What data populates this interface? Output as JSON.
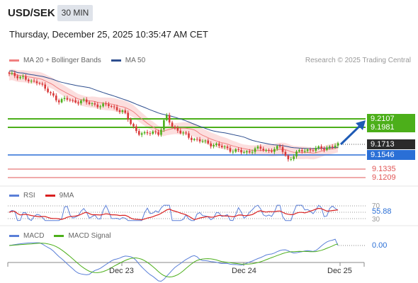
{
  "header": {
    "symbol": "USD/SEK",
    "timeframe": "30 MIN",
    "datetime": "Thursday, December 25, 2025 10:35:47 AM CET"
  },
  "main_legend": {
    "ma20_label": "MA 20 + Bollinger Bands",
    "ma50_label": "MA 50",
    "attribution": "Research © 2025 Trading Central"
  },
  "levels": {
    "r2": {
      "value": "9.2107",
      "color": "#4caf1a"
    },
    "r1": {
      "value": "9.1981",
      "color": "#4caf1a"
    },
    "last": {
      "value": "9.1713",
      "color": "#222222"
    },
    "pivot": {
      "value": "9.1546",
      "color": "#2a6fd6"
    },
    "s1": {
      "value": "9.1335",
      "color": "#e05555"
    },
    "s2": {
      "value": "9.1209",
      "color": "#e05555"
    }
  },
  "rsi_legend": {
    "rsi_label": "RSI",
    "ma_label": "9MA",
    "value": "55.88",
    "upper": "70",
    "lower": "30"
  },
  "macd_legend": {
    "macd_label": "MACD",
    "signal_label": "MACD Signal",
    "value": "0.00"
  },
  "x_axis": {
    "labels": [
      "Dec 23",
      "Dec 24",
      "Dec 25"
    ]
  },
  "colors": {
    "up": "#4caf1a",
    "down": "#d93a3a",
    "ma20": "#f08080",
    "ma50": "#2f4f8f",
    "band": "#fbd3d3",
    "rsi": "#5a7fd8",
    "rsi_ma": "#d92020",
    "macd": "#5a7fd8",
    "macd_signal": "#4caf1a",
    "arrow": "#1f5bb5"
  },
  "chart_data": {
    "type": "candlestick",
    "y_levels": [
      9.2107,
      9.1981,
      9.1713,
      9.1546,
      9.1335,
      9.1209
    ],
    "close_path": [
      9.276,
      9.275,
      9.272,
      9.264,
      9.268,
      9.255,
      9.245,
      9.238,
      9.24,
      9.236,
      9.238,
      9.234,
      9.232,
      9.23,
      9.231,
      9.226,
      9.22,
      9.205,
      9.19,
      9.187,
      9.193,
      9.188,
      9.215,
      9.198,
      9.19,
      9.185,
      9.18,
      9.177,
      9.174,
      9.172,
      9.168,
      9.165,
      9.163,
      9.16,
      9.165,
      9.167,
      9.163,
      9.166,
      9.168,
      9.15,
      9.158,
      9.164,
      9.165,
      9.166,
      9.167,
      9.17,
      9.171
    ],
    "rsi_value": 55.88,
    "rsi_bounds": [
      30,
      70
    ],
    "macd_value": 0.0,
    "x_ticks": [
      "Dec 23",
      "Dec 24",
      "Dec 25"
    ]
  }
}
